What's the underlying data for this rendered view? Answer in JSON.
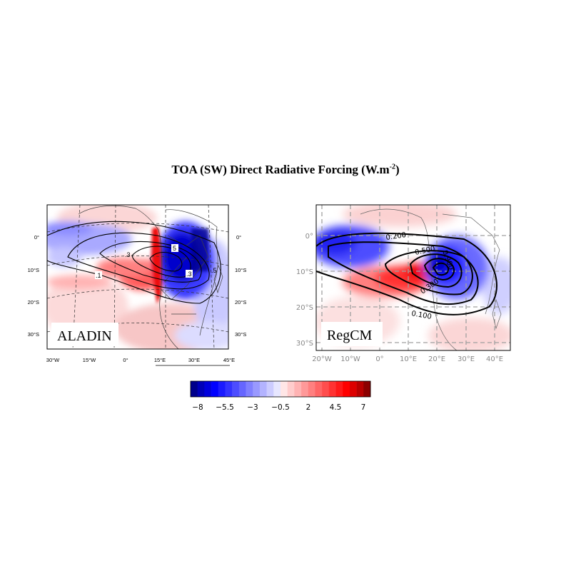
{
  "figure": {
    "title_main": "TOA (SW) Direct Radiative Forcing (W.m",
    "title_sup": "-2",
    "title_end": ")"
  },
  "panels": {
    "aladin": {
      "label": "ALADIN",
      "x_ticks": [
        "30°W",
        "15°W",
        "0°",
        "15°E",
        "30°E",
        "45°E"
      ],
      "y_ticks": [
        "0°",
        "10°S",
        "20°S",
        "30°S"
      ],
      "contour_labels": [
        "5",
        ".3",
        ".1",
        ".3",
        ".5"
      ]
    },
    "regcm": {
      "label": "RegCM",
      "x_ticks": [
        "20°W",
        "10°W",
        "0°",
        "10°E",
        "20°E",
        "30°E",
        "40°E"
      ],
      "y_ticks": [
        "0°",
        "10°S",
        "20°S",
        "30°S"
      ],
      "contour_labels": [
        "0.200",
        "0.500",
        "0.300",
        "0.100",
        "0.900"
      ]
    }
  },
  "colorbar": {
    "tick_labels": [
      "−8",
      "−5.5",
      "−3",
      "−0.5",
      "2",
      "4.5",
      "7"
    ],
    "colors": [
      "#00008b",
      "#0000b8",
      "#0000dd",
      "#0000ff",
      "#1a1aff",
      "#3333ff",
      "#4d4dff",
      "#6666ff",
      "#8080ff",
      "#9999ff",
      "#b3b3ff",
      "#ccccff",
      "#e6e6ff",
      "#ffe6e6",
      "#ffcccc",
      "#ffb3b3",
      "#ff9999",
      "#ff8080",
      "#ff6666",
      "#ff4d4d",
      "#ff3333",
      "#ff1a1a",
      "#ff0000",
      "#dd0000",
      "#b80000",
      "#8b0000"
    ]
  }
}
